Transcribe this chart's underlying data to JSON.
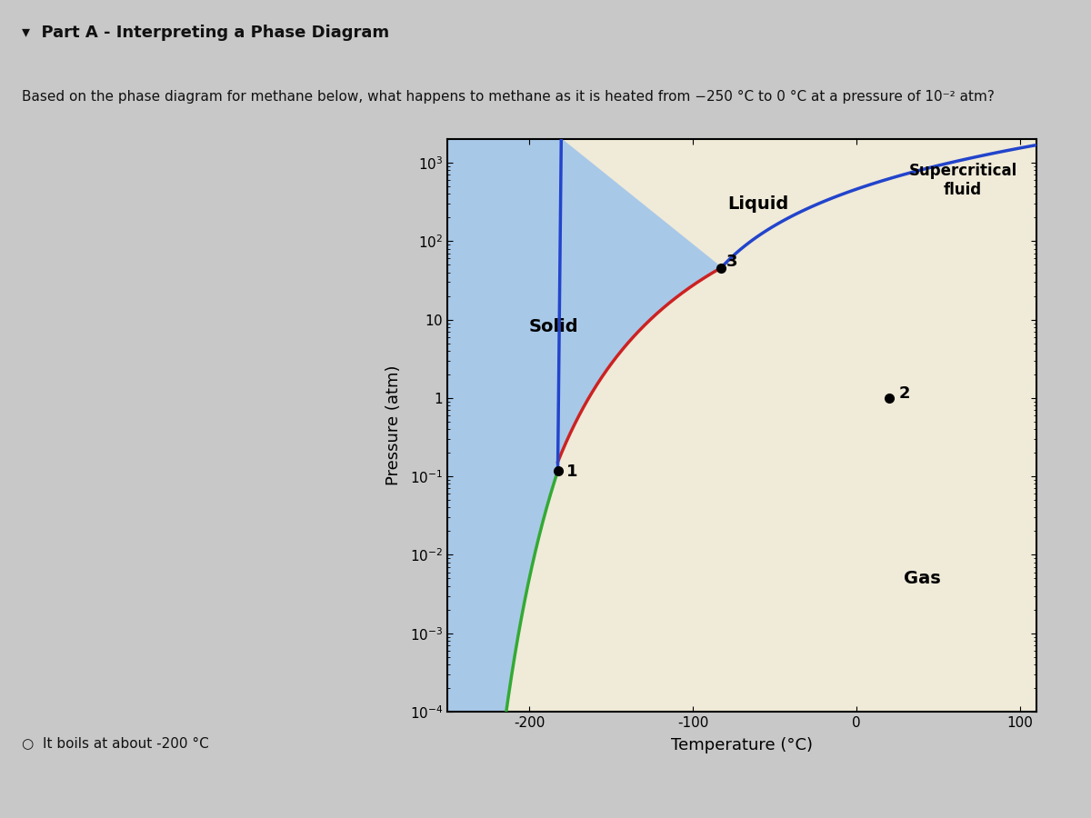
{
  "title_part": "Part A - Interpreting a Phase Diagram",
  "question": "Based on the phase diagram for methane below, what happens to methane as it is heated from −250 °C to 0 °C at a pressure of 10⁻² atm?",
  "xlabel": "Temperature (°C)",
  "ylabel": "Pressure (atm)",
  "xlim": [
    -250,
    110
  ],
  "solid_color": "#a8c8e8",
  "gas_color": "#f0ead8",
  "solid_label": "Solid",
  "liquid_label": "Liquid",
  "gas_label": "Gas",
  "supercritical_label": "Supercritical\nfluid",
  "answer_text": "It boils at about -200 °C",
  "triple_point_T": -182.5,
  "triple_point_P": 0.117,
  "critical_point_T": -82.6,
  "critical_point_P": 45.8,
  "point2_T": 20,
  "point2_P": 1.0,
  "melting_curve_color": "#2244cc",
  "vapor_liquid_color": "#cc2222",
  "sublimation_color": "#33aa33",
  "fig_bg": "#c8c8c8",
  "text_bg": "#e8e8e8"
}
